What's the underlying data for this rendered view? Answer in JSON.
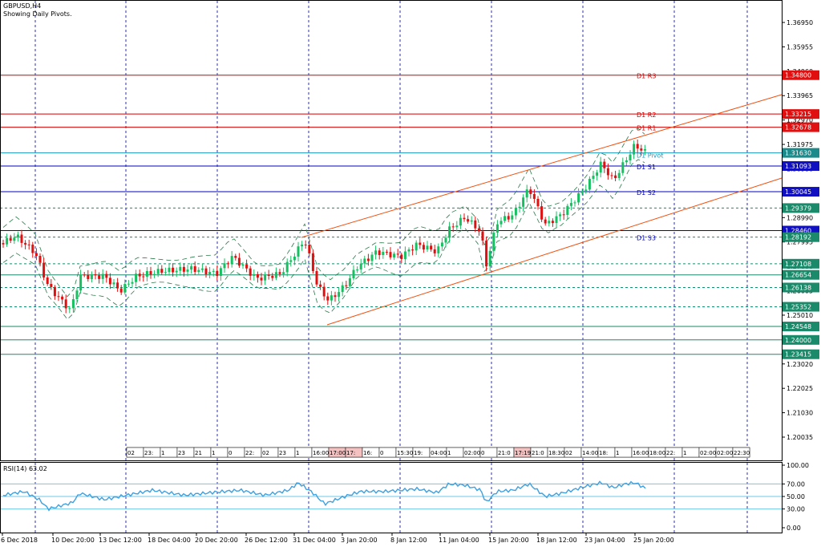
{
  "chart": {
    "title": "GBPUSD,H4",
    "subtitle": "Showing Daily Pivots.",
    "rsi_label": "RSI(14) 63.02",
    "colors": {
      "bull": "#16c060",
      "bear": "#e01010",
      "grid": "#2b2bd0",
      "axis": "#000000",
      "pivot": "#1a9ac0",
      "resist": "#d00000",
      "support": "#0000c0",
      "channel": "#f05010",
      "rsi": "#3da0e0"
    }
  },
  "price_axis": {
    "ticks": [
      "1.36950",
      "1.35955",
      "1.34960",
      "1.33965",
      "1.32970",
      "1.31975",
      "1.30980",
      "1.29985",
      "1.28990",
      "1.27995",
      "1.27000",
      "1.26005",
      "1.25010",
      "1.24015",
      "1.23020",
      "1.22025",
      "1.21030",
      "1.20035"
    ],
    "price_boxes": [
      {
        "label": "1.34800",
        "color": "#e01010"
      },
      {
        "label": "1.33215",
        "color": "#e01010"
      },
      {
        "label": "1.32678",
        "color": "#e01010"
      },
      {
        "label": "1.31630",
        "color": "#1a8a8a"
      },
      {
        "label": "1.31093",
        "color": "#1010c0"
      },
      {
        "label": "1.30045",
        "color": "#1010c0"
      },
      {
        "label": "1.29379",
        "color": "#1a8a6a"
      },
      {
        "label": "1.28460",
        "color": "#1010c0"
      },
      {
        "label": "1.28192",
        "color": "#1a8a6a"
      },
      {
        "label": "1.27108",
        "color": "#1a8a6a"
      },
      {
        "label": "1.26654",
        "color": "#1a8a6a"
      },
      {
        "label": "1.26138",
        "color": "#1a8a6a"
      },
      {
        "label": "1.25352",
        "color": "#1a8a6a"
      },
      {
        "label": "1.24548",
        "color": "#1a8a6a"
      },
      {
        "label": "1.24000",
        "color": "#1a8a6a"
      },
      {
        "label": "1.23415",
        "color": "#1a8a6a"
      }
    ]
  },
  "pivot_labels": [
    "D1 R3",
    "D1 R2",
    "D1 R1",
    "D1 Pivot",
    "D1 S1",
    "D1 S2",
    "D1 S3"
  ],
  "rsi_axis": {
    "ticks": [
      "100.00",
      "70.00",
      "50.00",
      "30.00",
      "0.00"
    ]
  },
  "time_axis": {
    "ticks": [
      "6 Dec 2018",
      "10 Dec 20:00",
      "13 Dec 12:00",
      "18 Dec 04:00",
      "20 Dec 20:00",
      "26 Dec 12:00",
      "31 Dec 04:00",
      "3 Jan 20:00",
      "8 Jan 12:00",
      "11 Jan 04:00",
      "15 Jan 20:00",
      "18 Jan 12:00",
      "23 Jan 04:00",
      "25 Jan 20:00"
    ]
  },
  "session_strip": [
    "02",
    "23:",
    "1",
    "23",
    "21",
    "1",
    "0",
    "22:",
    "02",
    "23",
    "1",
    "16:00",
    "17:00",
    "17:",
    "16:",
    "0",
    "15:30",
    "19:",
    "04:00",
    "1",
    "02:00",
    "0",
    "21:0",
    "17:19",
    "21:0",
    "18:30",
    "02",
    "14:00",
    "18:",
    "1",
    "16:00",
    "18:00",
    "22:",
    "1",
    "02:00",
    "02:00",
    "22:30"
  ]
}
